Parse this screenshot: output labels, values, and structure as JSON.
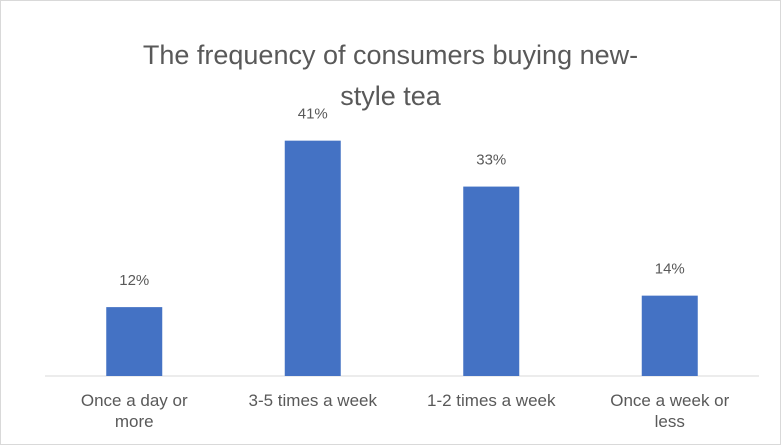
{
  "chart_data": {
    "type": "bar",
    "title_lines": [
      "The frequency of consumers buying new-",
      "style tea"
    ],
    "categories": [
      [
        "Once a day or",
        "more"
      ],
      [
        "3-5 times a week"
      ],
      [
        "1-2 times a week"
      ],
      [
        "Once a week or",
        "less"
      ]
    ],
    "values": [
      12,
      41,
      33,
      14
    ],
    "value_labels": [
      "12%",
      "41%",
      "33%",
      "14%"
    ],
    "unit": "%",
    "ylim": [
      0,
      50
    ],
    "grid": false,
    "legend": "none",
    "bar_color": "#4472c4",
    "axis_color": "#d9d9d9",
    "label_color": "#595959"
  }
}
